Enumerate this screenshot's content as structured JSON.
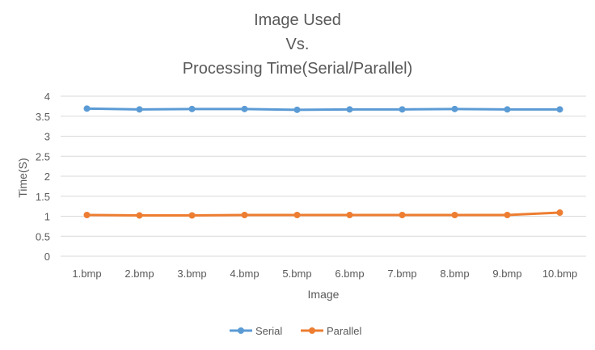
{
  "chart_data": {
    "type": "line",
    "title_lines": [
      "Image Used",
      "Vs.",
      "Processing Time(Serial/Parallel)"
    ],
    "xlabel": "Image",
    "ylabel": "Time(S)",
    "categories": [
      "1.bmp",
      "2.bmp",
      "3.bmp",
      "4.bmp",
      "5.bmp",
      "6.bmp",
      "7.bmp",
      "8.bmp",
      "9.bmp",
      "10.bmp"
    ],
    "ylim": [
      0,
      4
    ],
    "yticks": [
      "0",
      "0.5",
      "1",
      "1.5",
      "2",
      "2.5",
      "3",
      "3.5",
      "4"
    ],
    "grid": true,
    "legend_position": "bottom",
    "series": [
      {
        "name": "Serial",
        "color": "#5B9BD5",
        "values": [
          3.69,
          3.67,
          3.68,
          3.68,
          3.66,
          3.67,
          3.67,
          3.68,
          3.67,
          3.67
        ]
      },
      {
        "name": "Parallel",
        "color": "#ED7D31",
        "values": [
          1.03,
          1.02,
          1.02,
          1.03,
          1.03,
          1.03,
          1.03,
          1.03,
          1.03,
          1.09
        ]
      }
    ]
  }
}
